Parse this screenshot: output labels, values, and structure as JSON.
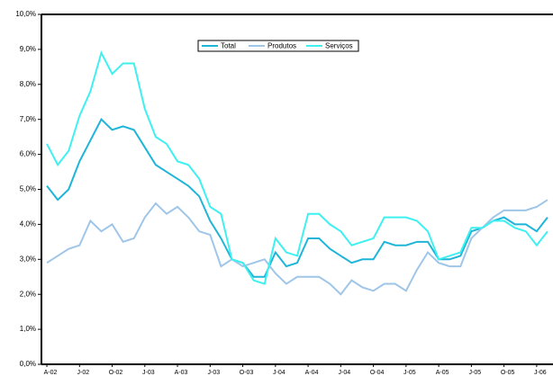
{
  "chart_data": {
    "type": "line",
    "categories": [
      "A-02",
      null,
      null,
      "J-02",
      null,
      null,
      "O-02",
      null,
      null,
      "J-03",
      null,
      null,
      "A-03",
      null,
      null,
      "J-03",
      null,
      null,
      "O-03",
      null,
      null,
      "J-04",
      null,
      null,
      "A-04",
      null,
      null,
      "J-04",
      null,
      null,
      "O-04",
      null,
      null,
      "J-05",
      null,
      null,
      "A-05",
      null,
      null,
      "J-05",
      null,
      null,
      "O-05",
      null,
      null,
      "J-06",
      null
    ],
    "series": [
      {
        "name": "Total",
        "color": "#1fb5d8",
        "values": [
          5.1,
          4.7,
          5.0,
          5.8,
          6.4,
          7.0,
          6.7,
          6.8,
          6.7,
          6.2,
          5.7,
          5.5,
          5.3,
          5.1,
          4.8,
          4.1,
          3.6,
          3.0,
          2.9,
          2.5,
          2.5,
          3.2,
          2.8,
          2.9,
          3.6,
          3.6,
          3.3,
          3.1,
          2.9,
          3.0,
          3.0,
          3.5,
          3.4,
          3.4,
          3.5,
          3.5,
          3.0,
          3.0,
          3.1,
          3.8,
          3.9,
          4.1,
          4.2,
          4.0,
          4.0,
          3.8,
          4.2
        ]
      },
      {
        "name": "Produtos",
        "color": "#9fc6e8",
        "values": [
          2.9,
          3.1,
          3.3,
          3.4,
          4.1,
          3.8,
          4.0,
          3.5,
          3.6,
          4.2,
          4.6,
          4.3,
          4.5,
          4.2,
          3.8,
          3.7,
          2.8,
          3.0,
          2.8,
          2.9,
          3.0,
          2.6,
          2.3,
          2.5,
          2.5,
          2.5,
          2.3,
          2.0,
          2.4,
          2.2,
          2.1,
          2.3,
          2.3,
          2.1,
          2.7,
          3.2,
          2.9,
          2.8,
          2.8,
          3.6,
          3.9,
          4.2,
          4.4,
          4.4,
          4.4,
          4.5,
          4.7
        ]
      },
      {
        "name": "Serviços",
        "color": "#3ff0f0",
        "values": [
          6.3,
          5.7,
          6.1,
          7.1,
          7.8,
          8.9,
          8.3,
          8.6,
          8.6,
          7.3,
          6.5,
          6.3,
          5.8,
          5.7,
          5.3,
          4.5,
          4.3,
          3.0,
          2.9,
          2.4,
          2.3,
          3.6,
          3.2,
          3.1,
          4.3,
          4.3,
          4.0,
          3.8,
          3.4,
          3.5,
          3.6,
          4.2,
          4.2,
          4.2,
          4.1,
          3.8,
          3.0,
          3.1,
          3.2,
          3.9,
          3.9,
          4.1,
          4.1,
          3.9,
          3.8,
          3.4,
          3.8
        ]
      }
    ],
    "ylim": [
      0,
      10
    ],
    "yticks": [
      {
        "value": 0,
        "label": "0,0%"
      },
      {
        "value": 1,
        "label": "1,0%"
      },
      {
        "value": 2,
        "label": "2,0%"
      },
      {
        "value": 3,
        "label": "3,0%"
      },
      {
        "value": 4,
        "label": "4,0%"
      },
      {
        "value": 5,
        "label": "5,0%"
      },
      {
        "value": 6,
        "label": "6,0%"
      },
      {
        "value": 7,
        "label": "7,0%"
      },
      {
        "value": 8,
        "label": "8,0%"
      },
      {
        "value": 9,
        "label": "9,0%"
      },
      {
        "value": 10,
        "label": "10,0%"
      }
    ],
    "grid": false,
    "legend": "top"
  }
}
